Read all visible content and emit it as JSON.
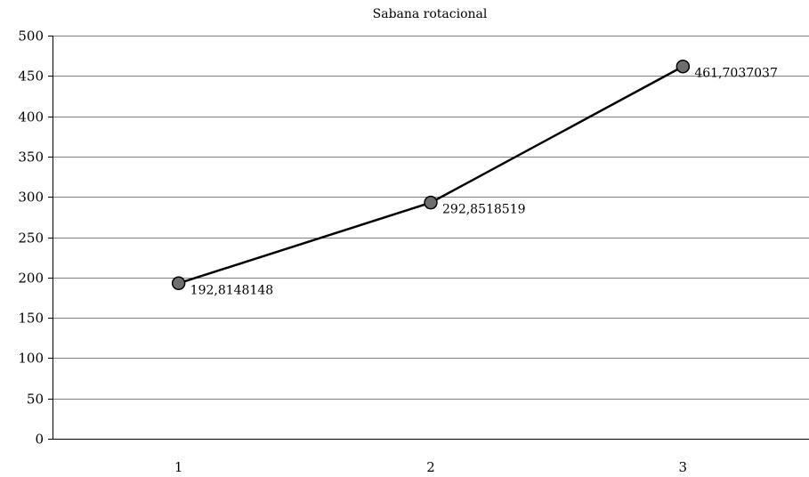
{
  "chart_data": {
    "type": "line",
    "title": "Sabana rotacional",
    "xlabel": "",
    "ylabel": "",
    "categories": [
      "1",
      "2",
      "3"
    ],
    "series": [
      {
        "values": [
          192.8148148,
          292.8518519,
          461.7037037
        ],
        "data_labels": [
          "192,8148148",
          "292,8518519",
          "461,7037037"
        ]
      }
    ],
    "ylim": [
      0,
      500
    ],
    "y_ticks": [
      0,
      50,
      100,
      150,
      200,
      250,
      300,
      350,
      400,
      450,
      500
    ],
    "y_tick_labels": [
      "0",
      "50",
      "100",
      "150",
      "200",
      "250",
      "300",
      "350",
      "400",
      "450",
      "500"
    ],
    "grid": true,
    "legend": "none",
    "colors": {
      "line": "#000000",
      "marker_fill": "#6e6e6e",
      "marker_stroke": "#000000",
      "grid": "#808080"
    }
  }
}
